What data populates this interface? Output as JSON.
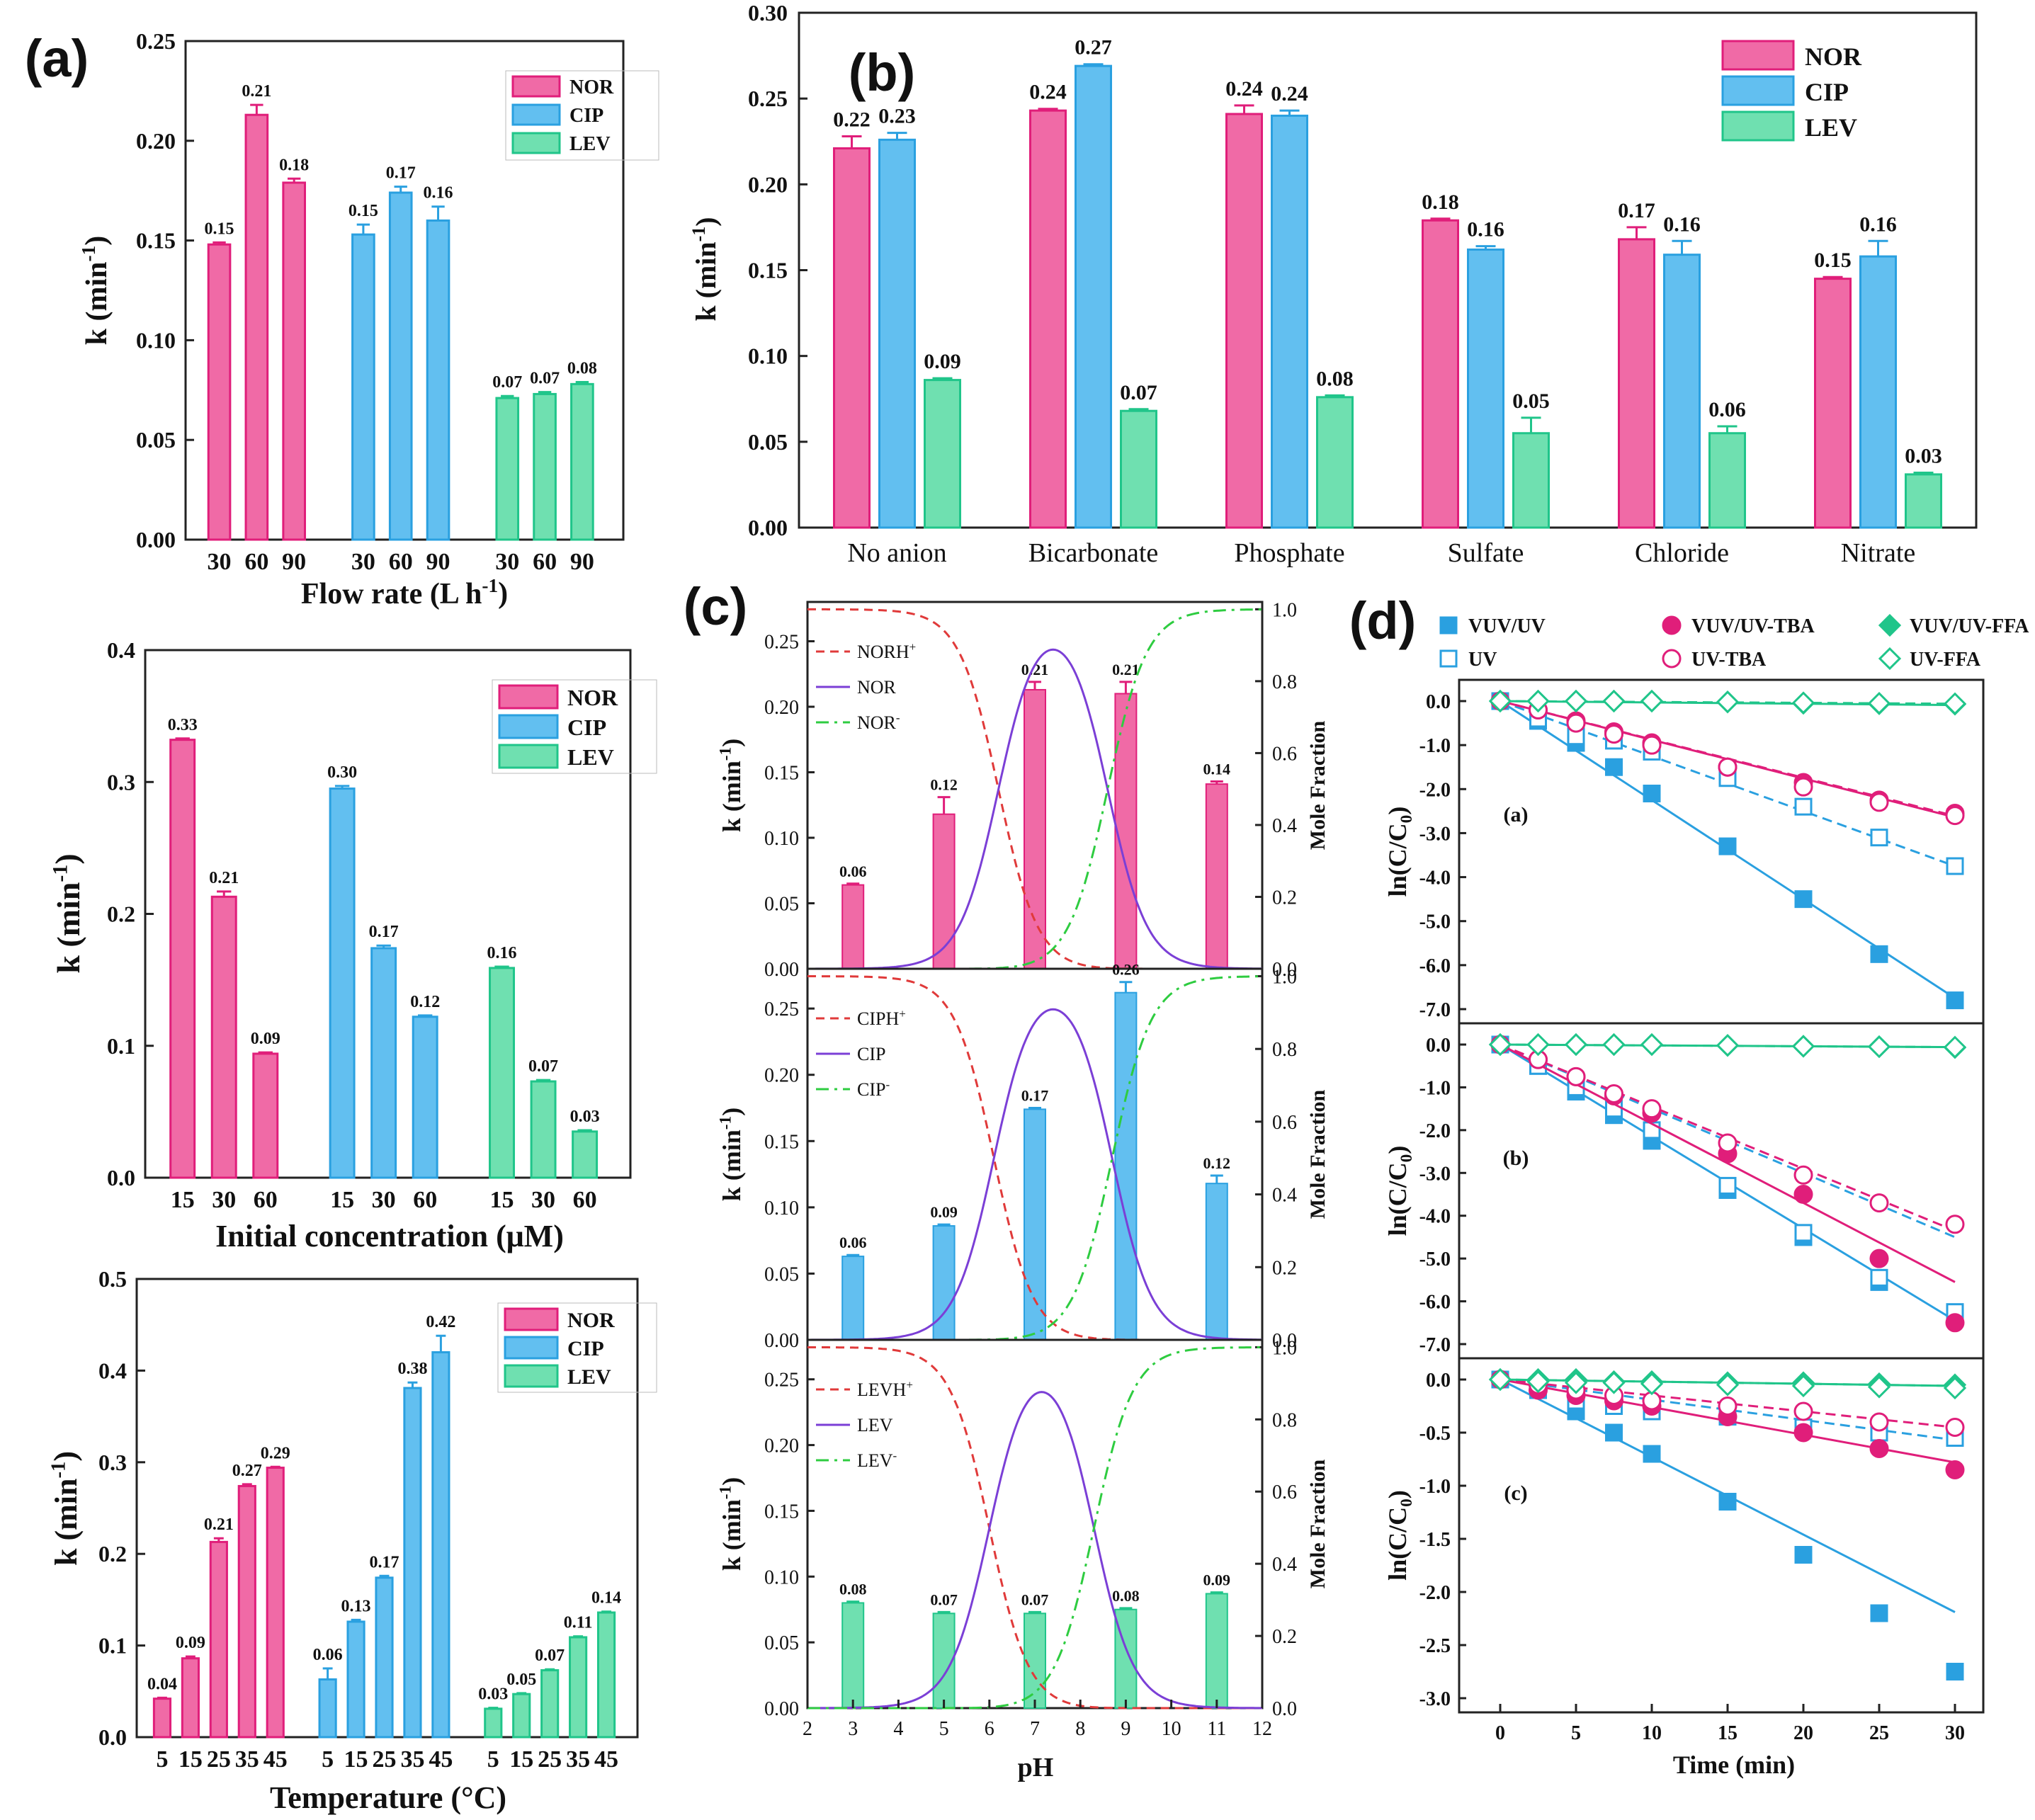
{
  "colors": {
    "NOR": "#f06aa6",
    "CIP": "#62bff0",
    "LEV": "#6fe0b0",
    "NOR_line": "#e01e7a",
    "CIP_line": "#2aa0e0",
    "LEV_line": "#20c58a",
    "speciation_cation": "#e03a3a",
    "speciation_neutral": "#7b3fd6",
    "speciation_anion": "#2ecc40"
  },
  "chart_data": [
    {
      "id": "a1",
      "panel_label": "(a)",
      "type": "bar",
      "xlabel_main": "Flow rate (L h",
      "xlabel_sup": "-1",
      "xlabel_end": ")",
      "ylabel": "k (min",
      "ylabel_sup": "-1",
      "ylabel_end": ")",
      "ylim": [
        0,
        0.25
      ],
      "yticks": [
        "0.00",
        "0.05",
        "0.10",
        "0.15",
        "0.20",
        "0.25"
      ],
      "legend": [
        "NOR",
        "CIP",
        "LEV"
      ],
      "groups": [
        {
          "series": "NOR",
          "categories": [
            "30",
            "60",
            "90"
          ],
          "values": [
            0.148,
            0.213,
            0.179
          ],
          "errors": [
            0.001,
            0.005,
            0.002
          ],
          "labels": [
            "0.15",
            "0.21",
            "0.18"
          ]
        },
        {
          "series": "CIP",
          "categories": [
            "30",
            "60",
            "90"
          ],
          "values": [
            0.153,
            0.174,
            0.16
          ],
          "errors": [
            0.005,
            0.003,
            0.007
          ],
          "labels": [
            "0.15",
            "0.17",
            "0.16"
          ]
        },
        {
          "series": "LEV",
          "categories": [
            "30",
            "60",
            "90"
          ],
          "values": [
            0.071,
            0.073,
            0.078
          ],
          "errors": [
            0.001,
            0.001,
            0.001
          ],
          "labels": [
            "0.07",
            "0.07",
            "0.08"
          ]
        }
      ]
    },
    {
      "id": "a2",
      "type": "bar",
      "xlabel_main": "Initial concentration (μM)",
      "ylabel": "k (min",
      "ylabel_sup": "-1",
      "ylabel_end": ")",
      "ylim": [
        0,
        0.4
      ],
      "yticks": [
        "0.0",
        "0.1",
        "0.2",
        "0.3",
        "0.4"
      ],
      "legend": [
        "NOR",
        "CIP",
        "LEV"
      ],
      "groups": [
        {
          "series": "NOR",
          "categories": [
            "15",
            "30",
            "60"
          ],
          "values": [
            0.332,
            0.213,
            0.094
          ],
          "errors": [
            0.001,
            0.004,
            0.001
          ],
          "labels": [
            "0.33",
            "0.21",
            "0.09"
          ]
        },
        {
          "series": "CIP",
          "categories": [
            "15",
            "30",
            "60"
          ],
          "values": [
            0.295,
            0.174,
            0.122
          ],
          "errors": [
            0.002,
            0.002,
            0.001
          ],
          "labels": [
            "0.30",
            "0.17",
            "0.12"
          ]
        },
        {
          "series": "LEV",
          "categories": [
            "15",
            "30",
            "60"
          ],
          "values": [
            0.159,
            0.073,
            0.035
          ],
          "errors": [
            0.001,
            0.001,
            0.001
          ],
          "labels": [
            "0.16",
            "0.07",
            "0.03"
          ]
        }
      ]
    },
    {
      "id": "a3",
      "type": "bar",
      "xlabel_main": "Temperature (°C)",
      "ylabel": "k (min",
      "ylabel_sup": "-1",
      "ylabel_end": ")",
      "ylim": [
        0,
        0.5
      ],
      "yticks": [
        "0.0",
        "0.1",
        "0.2",
        "0.3",
        "0.4",
        "0.5"
      ],
      "legend": [
        "NOR",
        "CIP",
        "LEV"
      ],
      "groups": [
        {
          "series": "NOR",
          "categories": [
            "5",
            "15",
            "25",
            "35",
            "45"
          ],
          "values": [
            0.042,
            0.086,
            0.213,
            0.274,
            0.294
          ],
          "errors": [
            0.001,
            0.002,
            0.004,
            0.002,
            0.001
          ],
          "labels": [
            "0.04",
            "0.09",
            "0.21",
            "0.27",
            "0.29"
          ]
        },
        {
          "series": "CIP",
          "categories": [
            "5",
            "15",
            "25",
            "35",
            "45"
          ],
          "values": [
            0.063,
            0.126,
            0.174,
            0.381,
            0.42
          ],
          "errors": [
            0.012,
            0.002,
            0.002,
            0.006,
            0.018
          ],
          "labels": [
            "0.06",
            "0.13",
            "0.17",
            "0.38",
            "0.42"
          ]
        },
        {
          "series": "LEV",
          "categories": [
            "5",
            "15",
            "25",
            "35",
            "45"
          ],
          "values": [
            0.031,
            0.047,
            0.073,
            0.109,
            0.136
          ],
          "errors": [
            0.001,
            0.001,
            0.001,
            0.001,
            0.001
          ],
          "labels": [
            "0.03",
            "0.05",
            "0.07",
            "0.11",
            "0.14"
          ]
        }
      ]
    },
    {
      "id": "b",
      "panel_label": "(b)",
      "type": "bar",
      "ylabel": "k (min",
      "ylabel_sup": "-1",
      "ylabel_end": ")",
      "ylim": [
        0,
        0.3
      ],
      "yticks": [
        "0.00",
        "0.05",
        "0.10",
        "0.15",
        "0.20",
        "0.25",
        "0.30"
      ],
      "legend": [
        "NOR",
        "CIP",
        "LEV"
      ],
      "categories": [
        "No anion",
        "Bicarbonate",
        "Phosphate",
        "Sulfate",
        "Chloride",
        "Nitrate"
      ],
      "series": [
        {
          "name": "NOR",
          "values": [
            0.221,
            0.243,
            0.241,
            0.179,
            0.168,
            0.145
          ],
          "errors": [
            0.007,
            0.001,
            0.005,
            0.001,
            0.007,
            0.001
          ],
          "labels": [
            "0.22",
            "0.24",
            "0.24",
            "0.18",
            "0.17",
            "0.15"
          ]
        },
        {
          "name": "CIP",
          "values": [
            0.226,
            0.269,
            0.24,
            0.162,
            0.159,
            0.158
          ],
          "errors": [
            0.004,
            0.001,
            0.003,
            0.002,
            0.008,
            0.009
          ],
          "labels": [
            "0.23",
            "0.27",
            "0.24",
            "0.16",
            "0.16",
            "0.16"
          ]
        },
        {
          "name": "LEV",
          "values": [
            0.086,
            0.068,
            0.076,
            0.055,
            0.055,
            0.031
          ],
          "errors": [
            0.001,
            0.001,
            0.001,
            0.009,
            0.004,
            0.001
          ],
          "labels": [
            "0.09",
            "0.07",
            "0.08",
            "0.05",
            "0.06",
            "0.03"
          ]
        }
      ]
    },
    {
      "id": "c",
      "panel_label": "(c)",
      "type": "bar+line",
      "xlabel": "pH",
      "ylabel": "k (min",
      "ylabel_sup": "-1",
      "ylabel_end": ")",
      "y2label": "Mole Fraction",
      "xlim": [
        2,
        12
      ],
      "xticks": [
        "2",
        "3",
        "4",
        "5",
        "6",
        "7",
        "8",
        "9",
        "10",
        "11",
        "12"
      ],
      "ylim": [
        0,
        0.28
      ],
      "yticks": [
        "0.00",
        "0.05",
        "0.10",
        "0.15",
        "0.20",
        "0.25"
      ],
      "y2ticks": [
        "0.0",
        "0.2",
        "0.4",
        "0.6",
        "0.8",
        "1.0"
      ],
      "pH": [
        3,
        5,
        7,
        9,
        11
      ],
      "subplots": [
        {
          "series": "NOR",
          "values": [
            0.064,
            0.118,
            0.213,
            0.21,
            0.141
          ],
          "errors": [
            0.001,
            0.013,
            0.006,
            0.009,
            0.002
          ],
          "labels": [
            "0.06",
            "0.12",
            "0.21",
            "0.21",
            "0.14"
          ],
          "species": [
            "NORH",
            "NOR",
            "NOR"
          ],
          "species_sup": [
            "+",
            "",
            "-"
          ],
          "pKa1": 6.2,
          "pKa2": 8.6
        },
        {
          "series": "CIP",
          "values": [
            0.063,
            0.086,
            0.174,
            0.262,
            0.118
          ],
          "errors": [
            0.001,
            0.001,
            0.001,
            0.008,
            0.006
          ],
          "labels": [
            "0.06",
            "0.09",
            "0.17",
            "0.26",
            "0.12"
          ],
          "species": [
            "CIPH",
            "CIP",
            "CIP"
          ],
          "species_sup": [
            "+",
            "",
            "-"
          ],
          "pKa1": 6.1,
          "pKa2": 8.7
        },
        {
          "series": "LEV",
          "values": [
            0.08,
            0.072,
            0.072,
            0.075,
            0.087
          ],
          "errors": [
            0.001,
            0.001,
            0.001,
            0.001,
            0.001
          ],
          "labels": [
            "0.08",
            "0.07",
            "0.07",
            "0.08",
            "0.09"
          ],
          "species": [
            "LEVH",
            "LEV",
            "LEV"
          ],
          "species_sup": [
            "+",
            "",
            "-"
          ],
          "pKa1": 6.0,
          "pKa2": 8.3
        }
      ]
    },
    {
      "id": "d",
      "panel_label": "(d)",
      "type": "scatter+line",
      "xlabel": "Time (min)",
      "ylabel": "ln(C/C",
      "ylabel_sub": "0",
      "ylabel_end": ")",
      "x": [
        0,
        2.5,
        5,
        7.5,
        10,
        15,
        20,
        25,
        30
      ],
      "xticks": [
        "0",
        "5",
        "10",
        "15",
        "20",
        "25",
        "30"
      ],
      "legend": [
        "VUV/UV",
        "VUV/UV-TBA",
        "VUV/UV-FFA",
        "UV",
        "UV-TBA",
        "UV-FFA"
      ],
      "subplots": [
        {
          "label": "(a)",
          "ylim": [
            -7.0,
            0.0
          ],
          "yticks": [
            "0.0",
            "-1.0",
            "-2.0",
            "-3.0",
            "-4.0",
            "-5.0",
            "-6.0",
            "-7.0"
          ],
          "tick_values": [
            0,
            -1,
            -2,
            -3,
            -4,
            -5,
            -6,
            -7
          ],
          "series": [
            {
              "name": "VUV/UV",
              "y": [
                0,
                -0.45,
                -0.95,
                -1.5,
                -2.1,
                -3.3,
                -4.5,
                -5.75,
                -6.8
              ],
              "fit_slope": -0.225
            },
            {
              "name": "UV",
              "y": [
                0,
                -0.4,
                -0.8,
                -0.9,
                -1.15,
                -1.75,
                -2.4,
                -3.1,
                -3.75
              ],
              "fit_slope": -0.125
            },
            {
              "name": "VUV/UV-TBA",
              "y": [
                0,
                -0.2,
                -0.45,
                -0.7,
                -0.95,
                -1.5,
                -1.85,
                -2.25,
                -2.55
              ],
              "fit_slope": -0.088
            },
            {
              "name": "UV-TBA",
              "y": [
                0,
                -0.2,
                -0.5,
                -0.75,
                -1.0,
                -1.5,
                -1.95,
                -2.3,
                -2.6
              ],
              "fit_slope": -0.087
            },
            {
              "name": "VUV/UV-FFA",
              "y": [
                0,
                0,
                0,
                0,
                0,
                -0.02,
                -0.05,
                -0.06,
                -0.07
              ],
              "fit_slope": -0.003
            },
            {
              "name": "UV-FFA",
              "y": [
                0,
                0,
                0,
                0,
                0,
                -0.02,
                -0.04,
                -0.05,
                -0.06
              ],
              "fit_slope": -0.002
            }
          ]
        },
        {
          "label": "(b)",
          "ylim": [
            -7.0,
            0.0
          ],
          "yticks": [
            "0.0",
            "-1.0",
            "-2.0",
            "-3.0",
            "-4.0",
            "-5.0",
            "-6.0",
            "-7.0"
          ],
          "tick_values": [
            0,
            -1,
            -2,
            -3,
            -4,
            -5,
            -6,
            -7
          ],
          "series": [
            {
              "name": "VUV/UV",
              "y": [
                0,
                -0.5,
                -1.1,
                -1.65,
                -2.25,
                -3.4,
                -4.5,
                -5.55,
                -6.3
              ],
              "fit_slope": -0.215
            },
            {
              "name": "UV",
              "y": [
                0,
                -0.5,
                -1.0,
                -1.5,
                -2.0,
                -3.3,
                -4.4,
                -5.45,
                -6.25
              ],
              "fit_slope": -0.15
            },
            {
              "name": "VUV/UV-TBA",
              "y": [
                0,
                -0.35,
                -0.75,
                -1.2,
                -1.6,
                -2.55,
                -3.5,
                -5.0,
                -6.5
              ],
              "fit_slope": -0.185
            },
            {
              "name": "UV-TBA",
              "y": [
                0,
                -0.35,
                -0.75,
                -1.15,
                -1.5,
                -2.3,
                -3.05,
                -3.7,
                -4.2
              ],
              "fit_slope": -0.145
            },
            {
              "name": "VUV/UV-FFA",
              "y": [
                0,
                0,
                0,
                0,
                0,
                -0.02,
                -0.04,
                -0.05,
                -0.07
              ],
              "fit_slope": -0.002
            },
            {
              "name": "UV-FFA",
              "y": [
                0,
                0,
                0,
                0,
                0,
                -0.02,
                -0.04,
                -0.05,
                -0.06
              ],
              "fit_slope": -0.002
            }
          ]
        },
        {
          "label": "(c)",
          "ylim": [
            -3.0,
            0.0
          ],
          "yticks": [
            "0.0",
            "-0.5",
            "-1.0",
            "-1.5",
            "-2.0",
            "-2.5",
            "-3.0"
          ],
          "tick_values": [
            0,
            -0.5,
            -1.0,
            -1.5,
            -2.0,
            -2.5,
            -3.0
          ],
          "series": [
            {
              "name": "VUV/UV",
              "y": [
                0,
                -0.1,
                -0.3,
                -0.5,
                -0.7,
                -1.15,
                -1.65,
                -2.2,
                -2.75
              ],
              "fit_slope": -0.073
            },
            {
              "name": "UV",
              "y": [
                0,
                -0.1,
                -0.2,
                -0.25,
                -0.3,
                -0.35,
                -0.45,
                -0.5,
                -0.55
              ],
              "fit_slope": -0.019
            },
            {
              "name": "VUV/UV-TBA",
              "y": [
                0,
                -0.1,
                -0.15,
                -0.2,
                -0.25,
                -0.35,
                -0.5,
                -0.65,
                -0.85
              ],
              "fit_slope": -0.026
            },
            {
              "name": "UV-TBA",
              "y": [
                0,
                -0.05,
                -0.1,
                -0.15,
                -0.2,
                -0.25,
                -0.3,
                -0.4,
                -0.45
              ],
              "fit_slope": -0.015
            },
            {
              "name": "VUV/UV-FFA",
              "y": [
                0,
                0,
                0,
                -0.02,
                -0.02,
                -0.03,
                -0.03,
                -0.04,
                -0.05
              ],
              "fit_slope": -0.002
            },
            {
              "name": "UV-FFA",
              "y": [
                0,
                -0.02,
                -0.03,
                -0.03,
                -0.04,
                -0.05,
                -0.06,
                -0.07,
                -0.08
              ],
              "fit_slope": -0.002
            }
          ]
        }
      ]
    }
  ]
}
